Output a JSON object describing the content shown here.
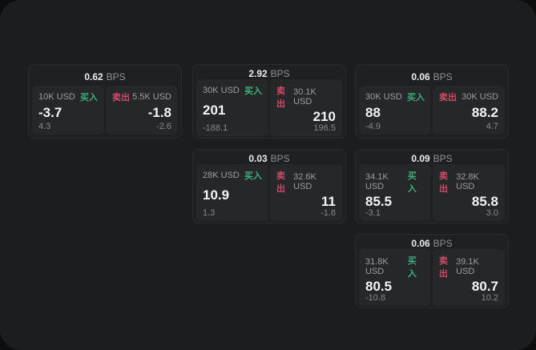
{
  "labels": {
    "bps": "BPS",
    "buy": "买入",
    "sell": "卖出"
  },
  "colors": {
    "buy": "#3fae7d",
    "sell": "#d04a68",
    "card_bg": "#1f2022",
    "panel_bg": "#262729",
    "app_bg": "#1c1d1e"
  },
  "cards": [
    {
      "bps": "0.62",
      "buy": {
        "size": "10K USD",
        "price": "-3.7",
        "delta": "4.3"
      },
      "sell": {
        "size": "5.5K USD",
        "price": "-1.8",
        "delta": "-2.6"
      }
    },
    {
      "bps": "2.92",
      "buy": {
        "size": "30K USD",
        "price": "201",
        "delta": "-188.1"
      },
      "sell": {
        "size": "30.1K USD",
        "price": "210",
        "delta": "196.5"
      }
    },
    {
      "bps": "0.06",
      "buy": {
        "size": "30K USD",
        "price": "88",
        "delta": "-4.9"
      },
      "sell": {
        "size": "30K USD",
        "price": "88.2",
        "delta": "4.7"
      }
    },
    {
      "bps": "0.03",
      "buy": {
        "size": "28K USD",
        "price": "10.9",
        "delta": "1.3"
      },
      "sell": {
        "size": "32.6K USD",
        "price": "11",
        "delta": "-1.8"
      }
    },
    {
      "bps": "0.09",
      "buy": {
        "size": "34.1K USD",
        "price": "85.5",
        "delta": "-3.1"
      },
      "sell": {
        "size": "32.8K USD",
        "price": "85.8",
        "delta": "3.0"
      }
    },
    {
      "bps": "0.06",
      "buy": {
        "size": "31.8K USD",
        "price": "80.5",
        "delta": "-10.8"
      },
      "sell": {
        "size": "39.1K USD",
        "price": "80.7",
        "delta": "10.2"
      }
    }
  ]
}
